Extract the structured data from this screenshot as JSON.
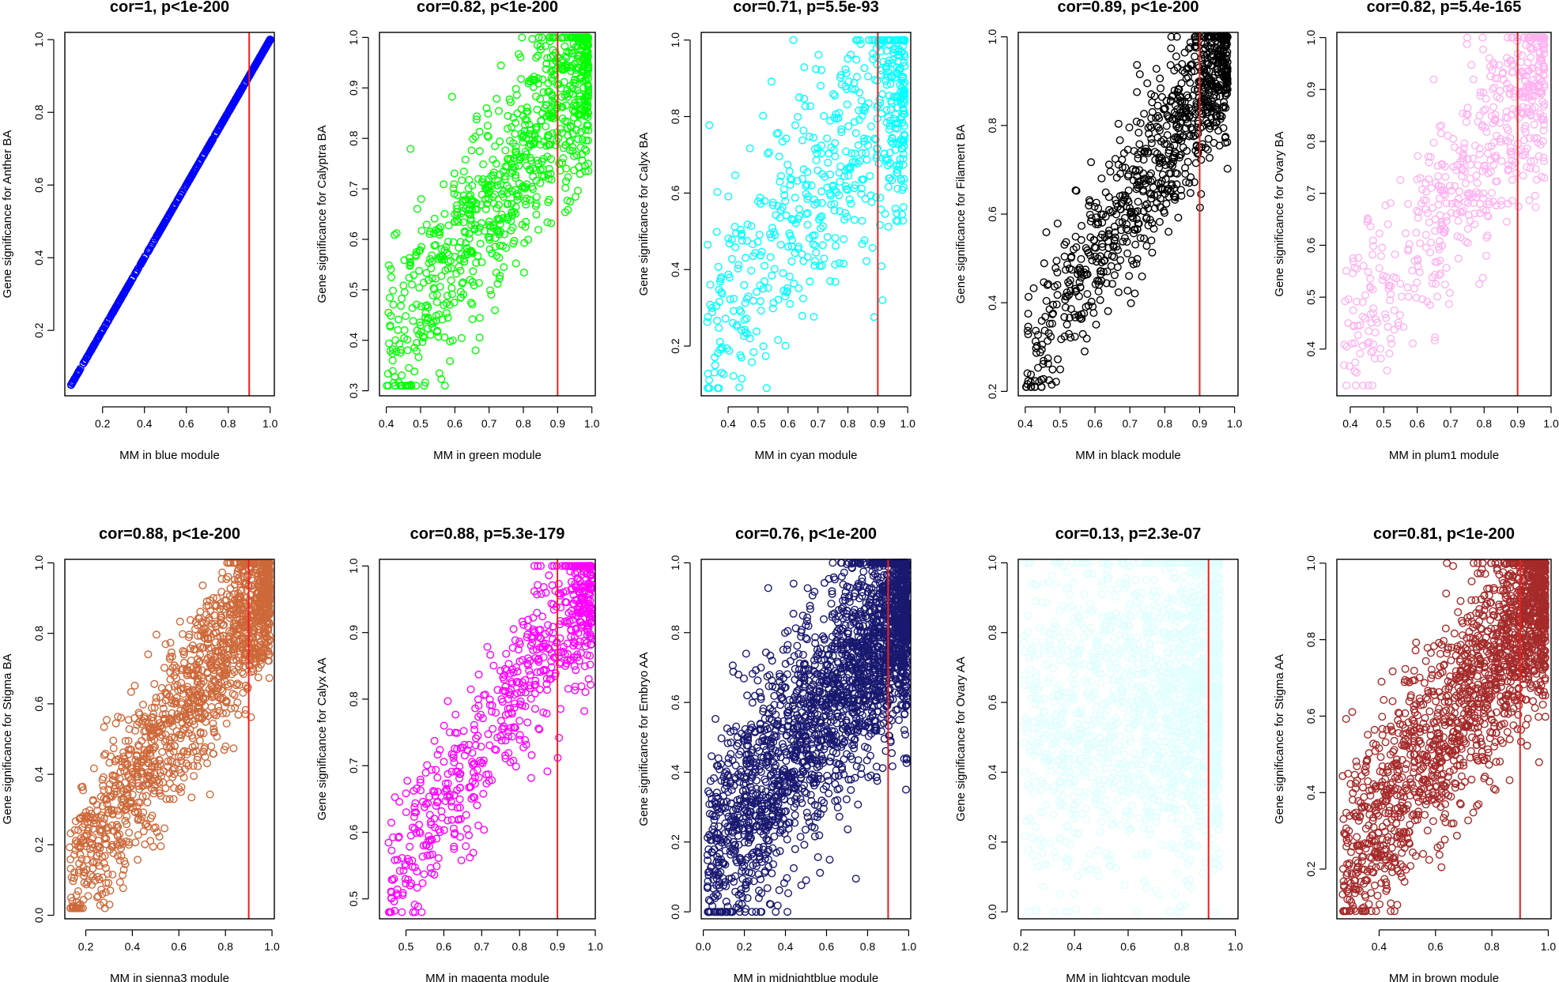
{
  "chart_data": [
    {
      "type": "scatter",
      "title": "cor=1, p<1e-200",
      "xlabel": "MM in blue module",
      "ylabel": "Gene significance for Anther BA",
      "color": "#0000ff",
      "cor": 1.0,
      "n_points": 700,
      "xlim": [
        0.02,
        1.02
      ],
      "ylim": [
        0.02,
        1.02
      ],
      "xticks": [
        0.2,
        0.4,
        0.6,
        0.8,
        1.0
      ],
      "xtick_labels": [
        "0.2",
        "0.4",
        "0.6",
        "0.8",
        "1.0"
      ],
      "yticks": [
        0.2,
        0.4,
        0.6,
        0.8,
        1.0
      ],
      "ytick_labels": [
        "0.2",
        "0.4",
        "0.6",
        "0.8",
        "1.0"
      ],
      "threshold_x": 0.9,
      "x_range": [
        0.04,
        1.0
      ],
      "y_range": [
        0.04,
        1.0
      ]
    },
    {
      "type": "scatter",
      "title": "cor=0.82, p<1e-200",
      "xlabel": "MM in green module",
      "ylabel": "Gene significance for Calyptra BA",
      "color": "#00ff00",
      "cor": 0.82,
      "n_points": 900,
      "xlim": [
        0.38,
        1.01
      ],
      "ylim": [
        0.29,
        1.01
      ],
      "xticks": [
        0.4,
        0.5,
        0.6,
        0.7,
        0.8,
        0.9,
        1.0
      ],
      "xtick_labels": [
        "0.4",
        "0.5",
        "0.6",
        "0.7",
        "0.8",
        "0.9",
        "1.0"
      ],
      "yticks": [
        0.3,
        0.4,
        0.5,
        0.6,
        0.7,
        0.8,
        0.9,
        1.0
      ],
      "ytick_labels": [
        "0.3",
        "0.4",
        "0.5",
        "0.6",
        "0.7",
        "0.8",
        "0.9",
        "1.0"
      ],
      "threshold_x": 0.9,
      "x_range": [
        0.4,
        0.99
      ],
      "y_range": [
        0.31,
        1.0
      ]
    },
    {
      "type": "scatter",
      "title": "cor=0.71, p=5.5e-93",
      "xlabel": "MM in cyan module",
      "ylabel": "Gene significance for Calyx BA",
      "color": "#00ffff",
      "cor": 0.71,
      "n_points": 600,
      "xlim": [
        0.31,
        1.01
      ],
      "ylim": [
        0.07,
        1.02
      ],
      "xticks": [
        0.4,
        0.5,
        0.6,
        0.7,
        0.8,
        0.9,
        1.0
      ],
      "xtick_labels": [
        "0.4",
        "0.5",
        "0.6",
        "0.7",
        "0.8",
        "0.9",
        "1.0"
      ],
      "yticks": [
        0.2,
        0.4,
        0.6,
        0.8,
        1.0
      ],
      "ytick_labels": [
        "0.2",
        "0.4",
        "0.6",
        "0.8",
        "1.0"
      ],
      "threshold_x": 0.9,
      "x_range": [
        0.33,
        0.99
      ],
      "y_range": [
        0.09,
        1.0
      ]
    },
    {
      "type": "scatter",
      "title": "cor=0.89, p<1e-200",
      "xlabel": "MM in black module",
      "ylabel": "Gene significance for Filament BA",
      "color": "#000000",
      "cor": 0.89,
      "n_points": 900,
      "xlim": [
        0.38,
        1.01
      ],
      "ylim": [
        0.19,
        1.01
      ],
      "xticks": [
        0.4,
        0.5,
        0.6,
        0.7,
        0.8,
        0.9,
        1.0
      ],
      "xtick_labels": [
        "0.4",
        "0.5",
        "0.6",
        "0.7",
        "0.8",
        "0.9",
        "1.0"
      ],
      "yticks": [
        0.2,
        0.4,
        0.6,
        0.8,
        1.0
      ],
      "ytick_labels": [
        "0.2",
        "0.4",
        "0.6",
        "0.8",
        "1.0"
      ],
      "threshold_x": 0.9,
      "x_range": [
        0.4,
        0.98
      ],
      "y_range": [
        0.21,
        1.0
      ]
    },
    {
      "type": "scatter",
      "title": "cor=0.82, p=5.4e-165",
      "xlabel": "MM in plum1 module",
      "ylabel": "Gene significance for Ovary BA",
      "color": "#ffb3f0",
      "cor": 0.82,
      "n_points": 600,
      "xlim": [
        0.36,
        1.0
      ],
      "ylim": [
        0.31,
        1.01
      ],
      "xticks": [
        0.4,
        0.5,
        0.6,
        0.7,
        0.8,
        0.9,
        1.0
      ],
      "xtick_labels": [
        "0.4",
        "0.5",
        "0.6",
        "0.7",
        "0.8",
        "0.9",
        "1.0"
      ],
      "yticks": [
        0.4,
        0.5,
        0.6,
        0.7,
        0.8,
        0.9,
        1.0
      ],
      "ytick_labels": [
        "0.4",
        "0.5",
        "0.6",
        "0.7",
        "0.8",
        "0.9",
        "1.0"
      ],
      "threshold_x": 0.9,
      "x_range": [
        0.38,
        0.98
      ],
      "y_range": [
        0.33,
        1.0
      ]
    },
    {
      "type": "scatter",
      "title": "cor=0.88, p<1e-200",
      "xlabel": "MM in sienna3 module",
      "ylabel": "Gene significance for Stigma BA",
      "color": "#cd6839",
      "cor": 0.88,
      "n_points": 1500,
      "xlim": [
        0.11,
        1.01
      ],
      "ylim": [
        -0.01,
        1.01
      ],
      "xticks": [
        0.2,
        0.4,
        0.6,
        0.8,
        1.0
      ],
      "xtick_labels": [
        "0.2",
        "0.4",
        "0.6",
        "0.8",
        "1.0"
      ],
      "yticks": [
        0.0,
        0.2,
        0.4,
        0.6,
        0.8,
        1.0
      ],
      "ytick_labels": [
        "0.0",
        "0.2",
        "0.4",
        "0.6",
        "0.8",
        "1.0"
      ],
      "threshold_x": 0.9,
      "x_range": [
        0.13,
        0.99
      ],
      "y_range": [
        0.02,
        1.0
      ]
    },
    {
      "type": "scatter",
      "title": "cor=0.88, p=5.3e-179",
      "xlabel": "MM in magenta module",
      "ylabel": "Gene significance for Calyx AA",
      "color": "#ff00ff",
      "cor": 0.88,
      "n_points": 700,
      "xlim": [
        0.43,
        1.0
      ],
      "ylim": [
        0.47,
        1.01
      ],
      "xticks": [
        0.5,
        0.6,
        0.7,
        0.8,
        0.9,
        1.0
      ],
      "xtick_labels": [
        "0.5",
        "0.6",
        "0.7",
        "0.8",
        "0.9",
        "1.0"
      ],
      "yticks": [
        0.5,
        0.6,
        0.7,
        0.8,
        0.9,
        1.0
      ],
      "ytick_labels": [
        "0.5",
        "0.6",
        "0.7",
        "0.8",
        "0.9",
        "1.0"
      ],
      "threshold_x": 0.9,
      "x_range": [
        0.45,
        0.99
      ],
      "y_range": [
        0.48,
        1.0
      ]
    },
    {
      "type": "scatter",
      "title": "cor=0.76, p<1e-200",
      "xlabel": "MM in midnightblue module",
      "ylabel": "Gene significance for Embryo AA",
      "color": "#191970",
      "cor": 0.76,
      "n_points": 2500,
      "xlim": [
        -0.01,
        1.01
      ],
      "ylim": [
        -0.02,
        1.01
      ],
      "xticks": [
        0.0,
        0.2,
        0.4,
        0.6,
        0.8,
        1.0
      ],
      "xtick_labels": [
        "0.0",
        "0.2",
        "0.4",
        "0.6",
        "0.8",
        "1.0"
      ],
      "yticks": [
        0.0,
        0.2,
        0.4,
        0.6,
        0.8,
        1.0
      ],
      "ytick_labels": [
        "0.0",
        "0.2",
        "0.4",
        "0.6",
        "0.8",
        "1.0"
      ],
      "threshold_x": 0.9,
      "x_range": [
        0.02,
        0.99
      ],
      "y_range": [
        0.0,
        1.0
      ]
    },
    {
      "type": "scatter",
      "title": "cor=0.13, p=2.3e-07",
      "xlabel": "MM in lightcyan module",
      "ylabel": "Gene significance for Ovary AA",
      "color": "#e0ffff",
      "cor": 0.13,
      "n_points": 1800,
      "xlim": [
        0.19,
        1.01
      ],
      "ylim": [
        -0.02,
        1.01
      ],
      "xticks": [
        0.2,
        0.4,
        0.6,
        0.8,
        1.0
      ],
      "xtick_labels": [
        "0.2",
        "0.4",
        "0.6",
        "0.8",
        "1.0"
      ],
      "yticks": [
        0.0,
        0.2,
        0.4,
        0.6,
        0.8,
        1.0
      ],
      "ytick_labels": [
        "0.0",
        "0.2",
        "0.4",
        "0.6",
        "0.8",
        "1.0"
      ],
      "threshold_x": 0.9,
      "x_range": [
        0.21,
        0.94
      ],
      "y_range": [
        0.0,
        1.0
      ]
    },
    {
      "type": "scatter",
      "title": "cor=0.81, p<1e-200",
      "xlabel": "MM in brown module",
      "ylabel": "Gene significance for Stigma AA",
      "color": "#a52a2a",
      "cor": 0.81,
      "n_points": 1800,
      "xlim": [
        0.25,
        1.01
      ],
      "ylim": [
        0.07,
        1.01
      ],
      "xticks": [
        0.4,
        0.6,
        0.8,
        1.0
      ],
      "xtick_labels": [
        "0.4",
        "0.6",
        "0.8",
        "1.0"
      ],
      "yticks": [
        0.2,
        0.4,
        0.6,
        0.8,
        1.0
      ],
      "ytick_labels": [
        "0.2",
        "0.4",
        "0.6",
        "0.8",
        "1.0"
      ],
      "threshold_x": 0.9,
      "x_range": [
        0.27,
        0.99
      ],
      "y_range": [
        0.09,
        1.0
      ]
    }
  ],
  "threshold_line_color": "#e8221f"
}
